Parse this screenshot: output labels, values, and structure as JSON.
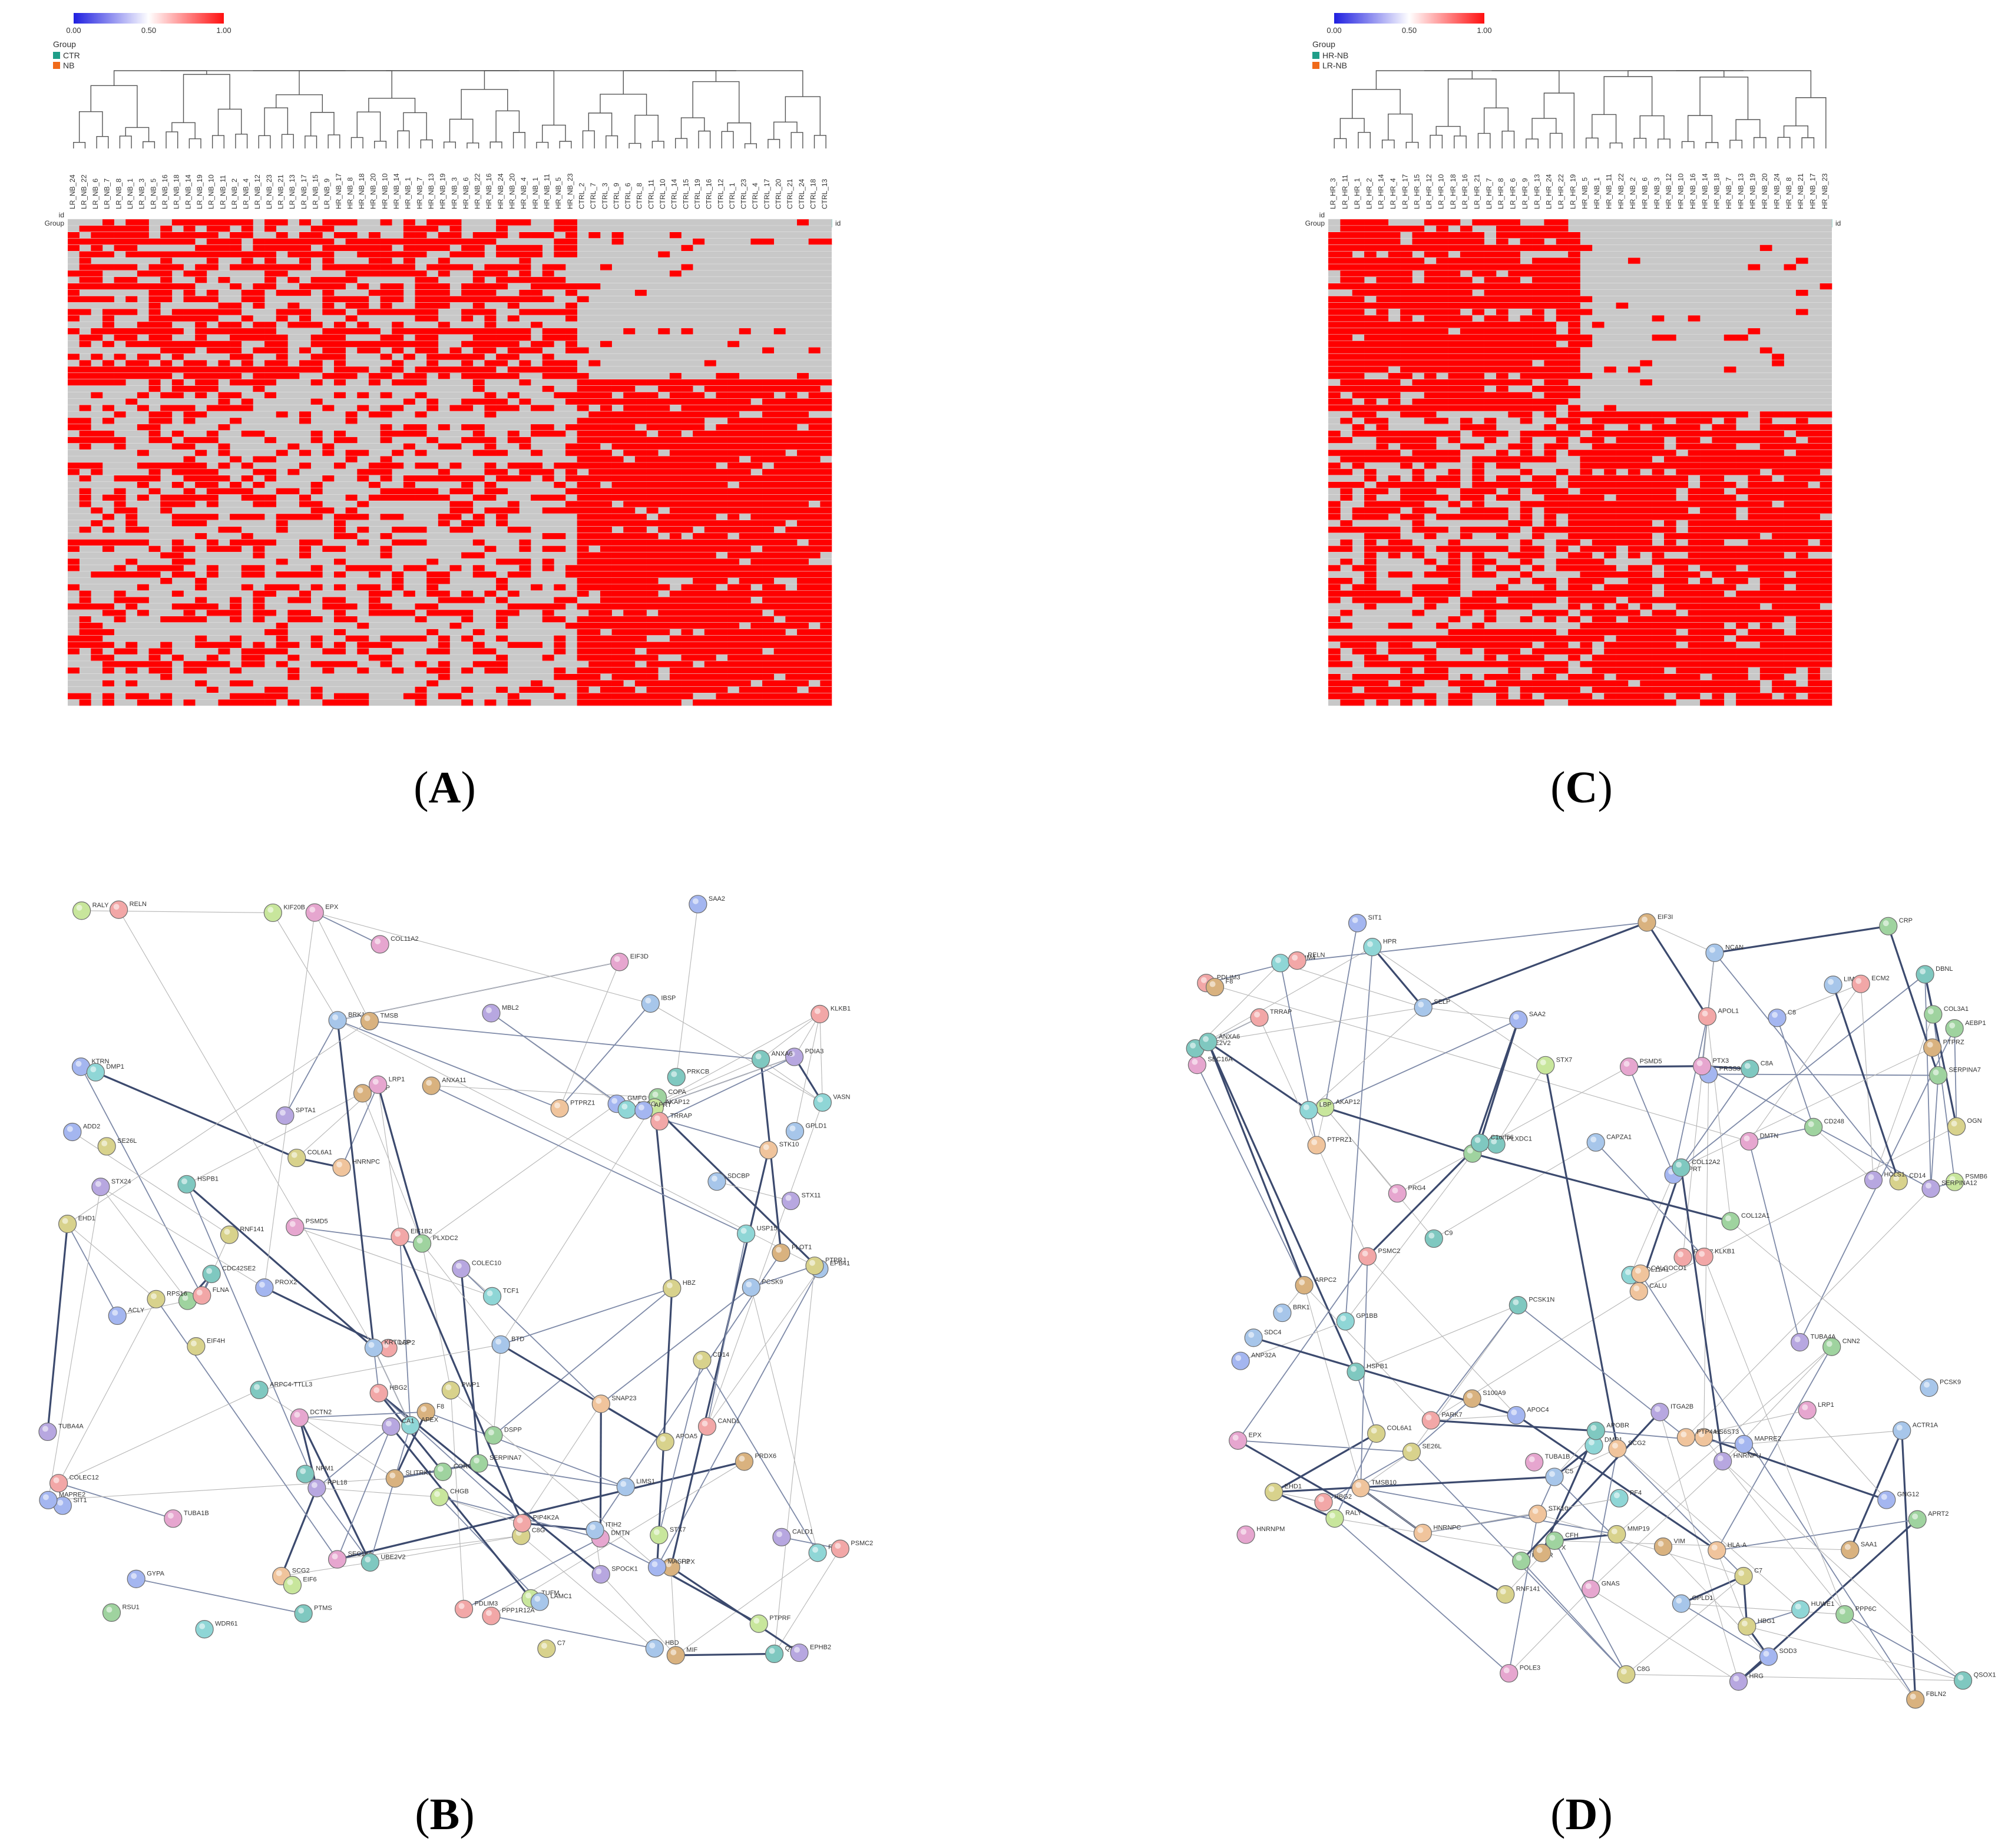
{
  "panels": {
    "A": {
      "letter": "A"
    },
    "B": {
      "letter": "B"
    },
    "C": {
      "letter": "C"
    },
    "D": {
      "letter": "D"
    }
  },
  "chart_data": [
    {
      "type": "heatmap",
      "panel": "A",
      "scale": {
        "ticks": [
          "0.00",
          "0.50",
          "1.00"
        ],
        "colors": [
          "#1f1fe0",
          "#ffffff",
          "#ff1010"
        ]
      },
      "legend_title": "Group",
      "groups": [
        {
          "name": "CTR",
          "color": "#1f9e89"
        },
        {
          "name": "NB",
          "color": "#f06a1a"
        }
      ],
      "row_labels": [
        "id",
        "Group"
      ],
      "side_label": "id",
      "cell_colors": {
        "present": "#ff0000",
        "absent": "#c8c8c8"
      },
      "columns": [
        "LR_NB_24",
        "LR_NB_22",
        "LR_NB_6",
        "LR_NB_7",
        "LR_NB_8",
        "LR_NB_1",
        "LR_NB_3",
        "LR_NB_5",
        "LR_NB_16",
        "LR_NB_18",
        "LR_NB_14",
        "LR_NB_19",
        "LR_NB_10",
        "LR_NB_11",
        "LR_NB_2",
        "LR_NB_4",
        "LR_NB_12",
        "LR_NB_23",
        "LR_NB_21",
        "LR_NB_13",
        "LR_NB_17",
        "LR_NB_15",
        "LR_NB_9",
        "HR_NB_17",
        "HR_NB_8",
        "HR_NB_18",
        "HR_NB_20",
        "HR_NB_10",
        "HR_NB_14",
        "HR_NB_1",
        "HR_NB_7",
        "HR_NB_13",
        "HR_NB_19",
        "HR_NB_3",
        "HR_NB_6",
        "HR_NB_22",
        "HR_NB_16",
        "HR_NB_24",
        "HR_NB_20",
        "HR_NB_4",
        "HR_NB_1",
        "HR_NB_11",
        "HR_NB_5",
        "HR_NB_23",
        "CTRL_2",
        "CTRL_7",
        "CTRL_3",
        "CTRL_9",
        "CTRL_6",
        "CTRL_8",
        "CTRL_11",
        "CTRL_10",
        "CTRL_14",
        "CTRL_15",
        "CTRL_19",
        "CTRL_16",
        "CTRL_12",
        "CTRL_1",
        "CTRL_23",
        "CTRL_4",
        "CTRL_17",
        "CTRL_20",
        "CTRL_21",
        "CTRL_24",
        "CTRL_18",
        "CTRL_13"
      ],
      "column_groups": [
        "NB",
        "NB",
        "NB",
        "NB",
        "NB",
        "NB",
        "NB",
        "NB",
        "NB",
        "NB",
        "NB",
        "NB",
        "NB",
        "NB",
        "NB",
        "NB",
        "NB",
        "NB",
        "NB",
        "NB",
        "NB",
        "NB",
        "NB",
        "NB",
        "NB",
        "NB",
        "NB",
        "NB",
        "NB",
        "NB",
        "NB",
        "NB",
        "NB",
        "NB",
        "NB",
        "NB",
        "NB",
        "NB",
        "NB",
        "NB",
        "NB",
        "NB",
        "NB",
        "NB",
        "CTR",
        "CTR",
        "CTR",
        "CTR",
        "CTR",
        "CTR",
        "CTR",
        "CTR",
        "CTR",
        "CTR",
        "CTR",
        "CTR",
        "CTR",
        "CTR",
        "CTR",
        "CTR",
        "CTR",
        "CTR",
        "CTR",
        "CTR",
        "CTR",
        "CTR"
      ],
      "n_rows": 76,
      "n_top_rows": 25,
      "n_left_columns": 44,
      "density": {
        "top_left": 0.55,
        "top_right": 0.04,
        "bottom_left": 0.3,
        "bottom_right": 0.88
      }
    },
    {
      "type": "heatmap",
      "panel": "C",
      "scale": {
        "ticks": [
          "0.00",
          "0.50",
          "1.00"
        ],
        "colors": [
          "#1f1fe0",
          "#ffffff",
          "#ff1010"
        ]
      },
      "legend_title": "Group",
      "groups": [
        {
          "name": "HR-NB",
          "color": "#1f9e89"
        },
        {
          "name": "LR-NB",
          "color": "#f06a1a"
        }
      ],
      "row_labels": [
        "id",
        "Group"
      ],
      "side_label": "id",
      "cell_colors": {
        "present": "#ff0000",
        "absent": "#c8c8c8"
      },
      "columns": [
        "LR_HR_3",
        "LR_HR_11",
        "LR_HR_1",
        "LR_HR_2",
        "LR_HR_14",
        "LR_HR_4",
        "LR_HR_17",
        "LR_HR_15",
        "LR_HR_12",
        "LR_HR_10",
        "LR_HR_18",
        "LR_HR_16",
        "LR_HR_21",
        "LR_HR_7",
        "LR_HR_8",
        "LR_HR_6",
        "LR_HR_9",
        "LR_HR_13",
        "LR_HR_24",
        "LR_HR_22",
        "LR_HR_19",
        "HR_NB_5",
        "HR_NB_1",
        "HR_NB_11",
        "HR_NB_22",
        "HR_NB_2",
        "HR_NB_6",
        "HR_NB_3",
        "HR_NB_12",
        "HR_NB_10",
        "HR_NB_16",
        "HR_NB_14",
        "HR_NB_18",
        "HR_NB_7",
        "HR_NB_13",
        "HR_NB_19",
        "HR_NB_20",
        "HR_NB_24",
        "HR_NB_8",
        "HR_NB_21",
        "HR_NB_17",
        "HR_NB_23"
      ],
      "column_groups": [
        "LR-NB",
        "LR-NB",
        "LR-NB",
        "LR-NB",
        "LR-NB",
        "LR-NB",
        "LR-NB",
        "LR-NB",
        "LR-NB",
        "LR-NB",
        "LR-NB",
        "LR-NB",
        "LR-NB",
        "LR-NB",
        "LR-NB",
        "LR-NB",
        "LR-NB",
        "LR-NB",
        "LR-NB",
        "LR-NB",
        "LR-NB",
        "HR-NB",
        "HR-NB",
        "HR-NB",
        "HR-NB",
        "HR-NB",
        "HR-NB",
        "HR-NB",
        "HR-NB",
        "HR-NB",
        "HR-NB",
        "HR-NB",
        "HR-NB",
        "HR-NB",
        "HR-NB",
        "HR-NB",
        "HR-NB",
        "HR-NB",
        "HR-NB",
        "HR-NB",
        "HR-NB",
        "HR-NB"
      ],
      "n_rows": 76,
      "n_top_rows": 30,
      "n_left_columns": 21,
      "density": {
        "top_left": 0.82,
        "top_right": 0.05,
        "bottom_left": 0.55,
        "bottom_right": 0.85
      }
    },
    {
      "type": "network",
      "panel": "B",
      "nodes": [
        "GPLD1",
        "COPA",
        "SPTA1",
        "EPB41",
        "GYPA",
        "DMTN",
        "ADD2",
        "AKAP12",
        "RSU1",
        "PTPRF",
        "QSOX1",
        "PTPRZ1",
        "PDLIM3",
        "LIMS1",
        "USP15",
        "GMFG",
        "PTPRJ",
        "LCP2",
        "SCG2",
        "CHGB",
        "STX11",
        "SDCBP",
        "VASP",
        "ZYX",
        "FLNA",
        "SNAP23",
        "STX7",
        "ANXA11",
        "EHD1",
        "CORO1C",
        "FLOT1",
        "SIT1",
        "PPP1R12A",
        "PDIA3",
        "CALD1",
        "PROX2",
        "HSPB1",
        "PRDX6",
        "SE26L",
        "RELN",
        "COLEC12",
        "ANXA6",
        "SPOCK1",
        "PRKCB",
        "F8",
        "LRP1",
        "PCSK9",
        "APOA5",
        "SAA2",
        "SEC16A",
        "SLITRK1",
        "TRRAP",
        "CD14",
        "KRTDAP",
        "HPX",
        "MBL2",
        "COLEC10",
        "MASP2",
        "RBP4",
        "EPX",
        "KLKB1",
        "SERPINA7",
        "SHBG",
        "C8G",
        "ACLY",
        "ITIH2",
        "C7",
        "BTD",
        "PIP4K2A",
        "APEX",
        "RNF141",
        "ARPC4-TTLL3",
        "EPHB2",
        "PLXDC2",
        "BRK1",
        "KTRN",
        "HNRNPC",
        "NPM1",
        "CA1",
        "APRT",
        "MAPRE2",
        "HBD",
        "HBZ",
        "HBG2",
        "TUBA4A",
        "UBE2V2",
        "TUBA1B",
        "TCF1",
        "MIF",
        "STX24",
        "WDR61",
        "VASN",
        "DCTN2",
        "TUFM",
        "PSMC2",
        "RPS16",
        "EIF1B2",
        "RPL18",
        "EIF3D",
        "EIF4H",
        "EIF6",
        "RALY",
        "PTMS",
        "TMSB",
        "CAND1",
        "PWP1",
        "KIF20B",
        "PSMD5",
        "CDC42SE2",
        "LAMC1",
        "COL11A2",
        "COL6A1",
        "DSPP",
        "DMP1",
        "IBSP",
        "STK10"
      ],
      "edges": 150
    },
    {
      "type": "network",
      "panel": "D",
      "nodes": [
        "TUBA1B",
        "TUBA4A",
        "MAPRE2",
        "ANP32A",
        "HNRNPC",
        "RALY",
        "HNRNPM",
        "HNRNPU",
        "PRSS3",
        "AKAP12",
        "GOLIM4",
        "POLE3",
        "TRRAP",
        "PPP6C",
        "DMP1",
        "SEC16A",
        "GPLD1",
        "STK10",
        "RPL27",
        "PSMB6",
        "EIF3I",
        "PSMD5",
        "PSMC2",
        "UBE2V2",
        "SOD3",
        "PARK7",
        "HUWE1",
        "PPP1R",
        "HSPB1",
        "APRT",
        "ZYX",
        "LIMS1",
        "CNN2",
        "VIM",
        "PDLIM3",
        "HS6ST3",
        "SDC4",
        "PTPRZ",
        "CD248",
        "FBLN2",
        "NCAN",
        "PLXDC1",
        "SE26L",
        "COL3A1",
        "COL11A1",
        "COL6A1",
        "COL12A1",
        "PTPRZ1",
        "COL12A2",
        "AEBP1",
        "CALU",
        "OGN",
        "ECM2",
        "PCSK9",
        "F8",
        "LRP1",
        "RELN",
        "ANXA6",
        "GNAS",
        "GNG12",
        "SCG2",
        "PCSK1N",
        "GP1BB",
        "ITGA2B",
        "SELP",
        "PF4",
        "CRP",
        "S100A9",
        "LBP",
        "CD14",
        "MMP19",
        "APRT2",
        "HPX",
        "EPX",
        "PRG4",
        "PTX3",
        "HRG",
        "KLKB1",
        "SERPINA12",
        "C8",
        "C8A",
        "C8G",
        "C5",
        "C7",
        "C9",
        "SERPINA7",
        "C1orf56",
        "DMTN",
        "CALCOCO1",
        "PTP4A2",
        "TMSB10",
        "HBG2",
        "HBG1",
        "SIT1",
        "APOC4",
        "HPR",
        "SAA2",
        "APOBR",
        "APOL1",
        "CFH",
        "SAA1",
        "QSOX1",
        "ACTR1A",
        "CAPZA1",
        "BRK1",
        "ARPC2",
        "DBNL",
        "HCLS1",
        "RNF141",
        "EHD1",
        "STX7",
        "HLA-A"
      ],
      "edges": 170
    }
  ]
}
